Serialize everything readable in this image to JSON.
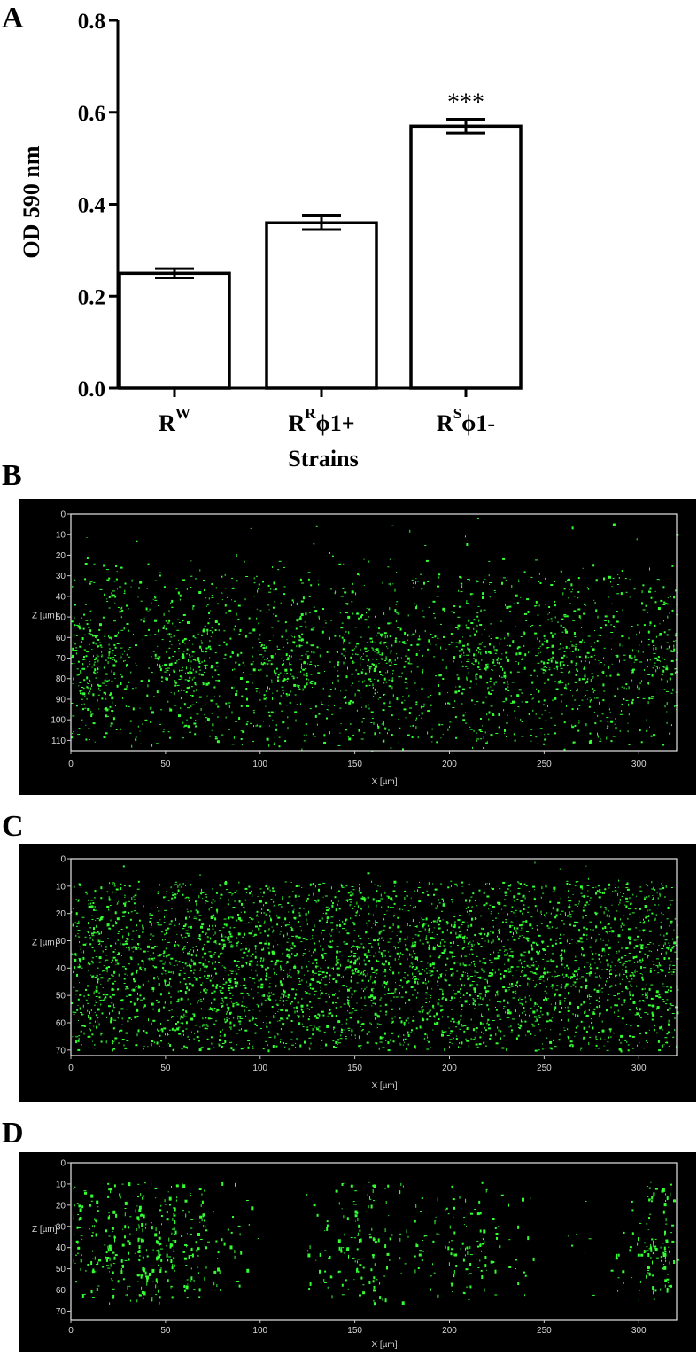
{
  "panel_labels": [
    "A",
    "B",
    "C",
    "D"
  ],
  "chart_data": {
    "type": "bar",
    "title": "",
    "xlabel": "Strains",
    "ylabel": "OD 590 nm",
    "ylim": [
      0,
      0.8
    ],
    "yticks": [
      "0.0",
      "0.2",
      "0.4",
      "0.6",
      "0.8"
    ],
    "categories": [
      {
        "base": "R",
        "sup": "W",
        "tail": ""
      },
      {
        "base": "R",
        "sup": "R",
        "tail": "ϕ1+"
      },
      {
        "base": "R",
        "sup": "S",
        "tail": "ϕ1-"
      }
    ],
    "values": [
      0.25,
      0.36,
      0.57
    ],
    "errors": [
      0.01,
      0.015,
      0.015
    ],
    "annotations": [
      "",
      "",
      "***"
    ],
    "bar_fill": "#ffffff",
    "bar_stroke": "#000000"
  },
  "micrographs": [
    {
      "id": "B",
      "z_label": "Z [µm]",
      "x_label": "X [µm]",
      "x_ticks": [
        "0",
        "50",
        "100",
        "150",
        "200",
        "250",
        "300"
      ],
      "z_ticks": [
        "0",
        "10",
        "20",
        "30",
        "40",
        "50",
        "60",
        "70",
        "80",
        "90",
        "100",
        "110"
      ],
      "z_max": 115,
      "color": "#33ff33"
    },
    {
      "id": "C",
      "z_label": "Z [µm]",
      "x_label": "X [µm]",
      "x_ticks": [
        "0",
        "50",
        "100",
        "150",
        "200",
        "250",
        "300"
      ],
      "z_ticks": [
        "0",
        "10",
        "20",
        "30",
        "40",
        "50",
        "60",
        "70"
      ],
      "z_max": 72,
      "color": "#33ff33"
    },
    {
      "id": "D",
      "z_label": "Z [µm]",
      "x_label": "X [µm]",
      "x_ticks": [
        "0",
        "50",
        "100",
        "150",
        "200",
        "250",
        "300"
      ],
      "z_ticks": [
        "0",
        "10",
        "20",
        "30",
        "40",
        "50",
        "60",
        "70"
      ],
      "z_max": 74,
      "color": "#33ff33"
    }
  ]
}
